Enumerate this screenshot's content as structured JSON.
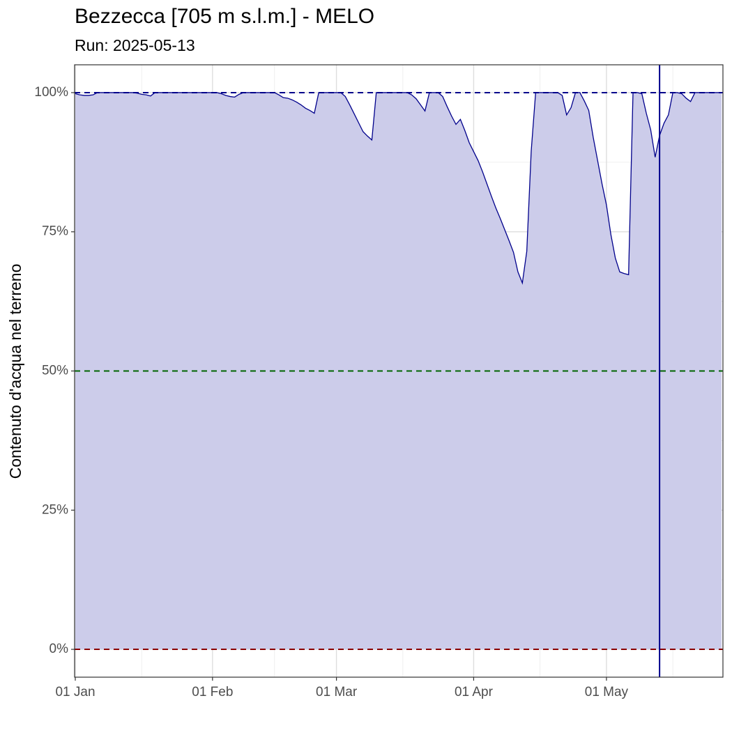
{
  "chart_data": {
    "type": "area",
    "title": "Bezzecca [705 m s.l.m.] - MELO",
    "subtitle": "Run: 2025-05-13",
    "y_label": "Contenuto d'acqua nel terreno",
    "x": [
      "01 Jan",
      "02 Jan",
      "03 Jan",
      "04 Jan",
      "05 Jan",
      "06 Jan",
      "07 Jan",
      "08 Jan",
      "09 Jan",
      "10 Jan",
      "11 Jan",
      "12 Jan",
      "13 Jan",
      "14 Jan",
      "15 Jan",
      "16 Jan",
      "17 Jan",
      "18 Jan",
      "19 Jan",
      "20 Jan",
      "21 Jan",
      "22 Jan",
      "23 Jan",
      "24 Jan",
      "25 Jan",
      "26 Jan",
      "27 Jan",
      "28 Jan",
      "29 Jan",
      "30 Jan",
      "31 Jan",
      "01 Feb",
      "02 Feb",
      "03 Feb",
      "04 Feb",
      "05 Feb",
      "06 Feb",
      "07 Feb",
      "08 Feb",
      "09 Feb",
      "10 Feb",
      "11 Feb",
      "12 Feb",
      "13 Feb",
      "14 Feb",
      "15 Feb",
      "16 Feb",
      "17 Feb",
      "18 Feb",
      "19 Feb",
      "20 Feb",
      "21 Feb",
      "22 Feb",
      "23 Feb",
      "24 Feb",
      "25 Feb",
      "26 Feb",
      "27 Feb",
      "28 Feb",
      "01 Mar",
      "02 Mar",
      "03 Mar",
      "04 Mar",
      "05 Mar",
      "06 Mar",
      "07 Mar",
      "08 Mar",
      "09 Mar",
      "10 Mar",
      "11 Mar",
      "12 Mar",
      "13 Mar",
      "14 Mar",
      "15 Mar",
      "16 Mar",
      "17 Mar",
      "18 Mar",
      "19 Mar",
      "20 Mar",
      "21 Mar",
      "22 Mar",
      "23 Mar",
      "24 Mar",
      "25 Mar",
      "26 Mar",
      "27 Mar",
      "28 Mar",
      "29 Mar",
      "30 Mar",
      "31 Mar",
      "01 Apr",
      "02 Apr",
      "03 Apr",
      "04 Apr",
      "05 Apr",
      "06 Apr",
      "07 Apr",
      "08 Apr",
      "09 Apr",
      "10 Apr",
      "11 Apr",
      "12 Apr",
      "13 Apr",
      "14 Apr",
      "15 Apr",
      "16 Apr",
      "17 Apr",
      "18 Apr",
      "19 Apr",
      "20 Apr",
      "21 Apr",
      "22 Apr",
      "23 Apr",
      "24 Apr",
      "25 Apr",
      "26 Apr",
      "27 Apr",
      "28 Apr",
      "29 Apr",
      "30 Apr",
      "01 May",
      "02 May",
      "03 May",
      "04 May",
      "05 May",
      "06 May",
      "07 May",
      "08 May",
      "09 May",
      "10 May",
      "11 May",
      "12 May",
      "13 May",
      "14 May",
      "15 May",
      "16 May",
      "17 May",
      "18 May",
      "19 May",
      "20 May",
      "21 May",
      "22 May",
      "23 May",
      "24 May",
      "25 May",
      "26 May",
      "27 May"
    ],
    "series": [
      {
        "color": "#00008b",
        "fill": "#ccccea",
        "values": [
          99.8,
          99.6,
          99.5,
          99.5,
          99.6,
          100,
          100,
          100,
          100,
          100,
          100,
          100,
          100,
          100,
          99.9,
          99.7,
          99.6,
          99.4,
          100,
          100,
          100,
          100,
          100,
          100,
          100,
          100,
          100,
          100,
          100,
          100,
          100,
          100,
          100,
          99.8,
          99.5,
          99.3,
          99.2,
          99.7,
          100,
          100,
          100,
          100,
          100,
          100,
          100,
          100,
          99.6,
          99.1,
          99.0,
          98.7,
          98.3,
          97.8,
          97.2,
          96.8,
          96.3,
          100,
          100,
          100,
          100,
          100,
          100,
          99.3,
          97.8,
          96.2,
          94.6,
          93.0,
          92.2,
          91.5,
          100,
          100,
          100,
          100,
          100,
          100,
          100,
          100,
          99.6,
          98.9,
          97.8,
          96.7,
          100,
          100,
          100,
          99.3,
          97.5,
          95.8,
          94.3,
          95.2,
          93.2,
          91.0,
          89.4,
          87.8,
          85.8,
          83.6,
          81.4,
          79.3,
          77.4,
          75.4,
          73.4,
          71.3,
          67.8,
          65.8,
          71.5,
          89.5,
          100,
          100,
          100,
          100,
          100,
          100,
          99.5,
          96.0,
          97.3,
          100,
          100,
          98.5,
          96.8,
          92.0,
          87.8,
          83.6,
          79.8,
          74.5,
          70.3,
          67.8,
          67.5,
          67.3,
          100,
          100,
          99.8,
          96.3,
          93.3,
          88.4,
          92.3,
          94.5,
          96.0,
          100,
          100,
          99.8,
          99.0,
          98.4,
          100,
          100,
          100,
          100,
          100,
          100,
          100
        ]
      }
    ],
    "ylim": [
      -5,
      105
    ],
    "yticks": [
      {
        "value": 0,
        "label": "0%"
      },
      {
        "value": 25,
        "label": "25%"
      },
      {
        "value": 50,
        "label": "50%"
      },
      {
        "value": 75,
        "label": "75%"
      },
      {
        "value": 100,
        "label": "100%"
      }
    ],
    "yminorticks": [
      12.5,
      37.5,
      62.5,
      87.5
    ],
    "xticks": [
      "01 Jan",
      "01 Feb",
      "01 Mar",
      "01 Apr",
      "01 May"
    ],
    "xminorticks": [
      "16 Jan",
      "15 Feb",
      "16 Mar",
      "16 Apr",
      "16 May"
    ],
    "hlines": [
      {
        "value": 100,
        "color": "#00008b"
      },
      {
        "value": 50,
        "color": "#006400"
      },
      {
        "value": 0,
        "color": "#8b0000"
      }
    ],
    "vline": {
      "x": "13 May",
      "color": "#00008b"
    },
    "grid": true
  }
}
